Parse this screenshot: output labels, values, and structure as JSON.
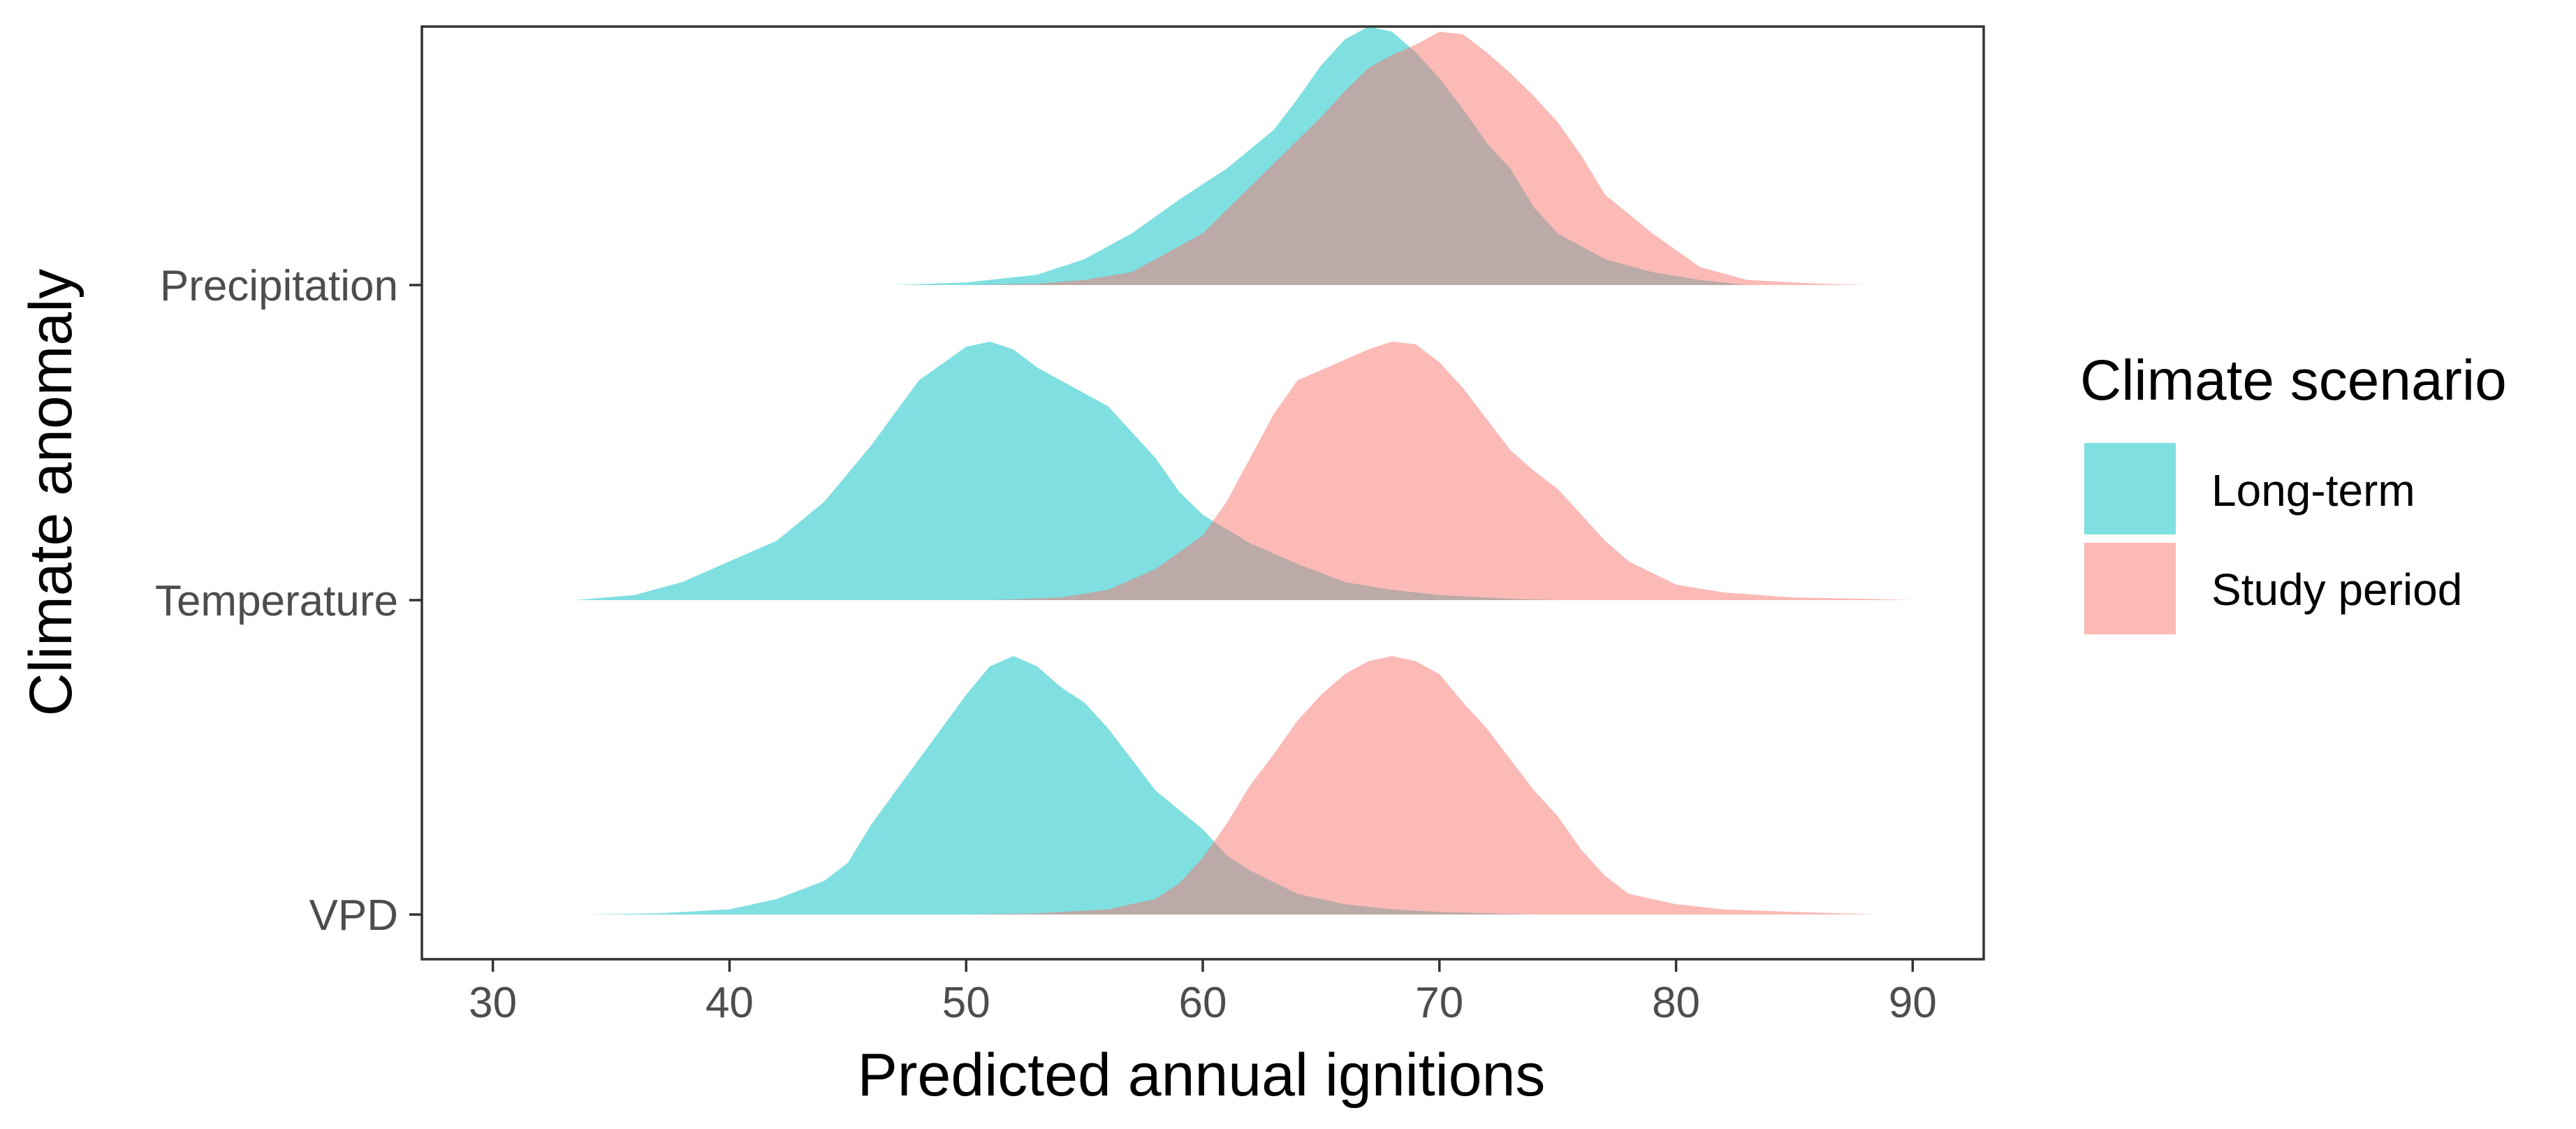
{
  "chart_data": {
    "type": "area",
    "subtype": "ridgeline-density",
    "title": "",
    "xlabel": "Predicted annual ignitions",
    "ylabel": "Climate anomaly",
    "xlim": [
      27,
      93
    ],
    "xticks": [
      30,
      40,
      50,
      60,
      70,
      80,
      90
    ],
    "categories": [
      "Precipitation",
      "Temperature",
      "VPD"
    ],
    "grid": false,
    "legend": {
      "title": "Climate scenario",
      "position": "right"
    },
    "series": [
      {
        "name": "Long-term",
        "color": "#00BFC4",
        "opacity": 0.5,
        "densities": {
          "Precipitation": [
            [
              47,
              0
            ],
            [
              50,
              0.01
            ],
            [
              53,
              0.04
            ],
            [
              55,
              0.1
            ],
            [
              57,
              0.2
            ],
            [
              59,
              0.33
            ],
            [
              61,
              0.45
            ],
            [
              63,
              0.6
            ],
            [
              64,
              0.72
            ],
            [
              65,
              0.85
            ],
            [
              66,
              0.95
            ],
            [
              67,
              1.0
            ],
            [
              68,
              0.98
            ],
            [
              69,
              0.9
            ],
            [
              70,
              0.8
            ],
            [
              71,
              0.68
            ],
            [
              72,
              0.55
            ],
            [
              73,
              0.45
            ],
            [
              74,
              0.3
            ],
            [
              75,
              0.2
            ],
            [
              77,
              0.1
            ],
            [
              79,
              0.05
            ],
            [
              81,
              0.02
            ],
            [
              83,
              0
            ]
          ],
          "Temperature": [
            [
              33.5,
              0
            ],
            [
              36,
              0.02
            ],
            [
              38,
              0.07
            ],
            [
              40,
              0.15
            ],
            [
              42,
              0.23
            ],
            [
              44,
              0.38
            ],
            [
              46,
              0.6
            ],
            [
              48,
              0.85
            ],
            [
              50,
              0.98
            ],
            [
              51,
              1.0
            ],
            [
              52,
              0.97
            ],
            [
              53,
              0.9
            ],
            [
              55,
              0.8
            ],
            [
              56,
              0.75
            ],
            [
              58,
              0.55
            ],
            [
              59,
              0.42
            ],
            [
              60,
              0.33
            ],
            [
              62,
              0.22
            ],
            [
              64,
              0.14
            ],
            [
              66,
              0.07
            ],
            [
              68,
              0.04
            ],
            [
              70,
              0.02
            ],
            [
              73,
              0.005
            ],
            [
              75,
              0
            ]
          ],
          "VPD": [
            [
              34,
              0
            ],
            [
              37,
              0.005
            ],
            [
              40,
              0.02
            ],
            [
              42,
              0.06
            ],
            [
              44,
              0.13
            ],
            [
              45,
              0.2
            ],
            [
              46,
              0.35
            ],
            [
              48,
              0.6
            ],
            [
              50,
              0.85
            ],
            [
              51,
              0.96
            ],
            [
              52,
              1.0
            ],
            [
              53,
              0.96
            ],
            [
              54,
              0.88
            ],
            [
              55,
              0.82
            ],
            [
              56,
              0.72
            ],
            [
              57,
              0.6
            ],
            [
              58,
              0.48
            ],
            [
              60,
              0.33
            ],
            [
              61,
              0.23
            ],
            [
              62,
              0.17
            ],
            [
              64,
              0.08
            ],
            [
              66,
              0.04
            ],
            [
              68,
              0.02
            ],
            [
              70,
              0.01
            ],
            [
              74,
              0
            ]
          ]
        }
      },
      {
        "name": "Study period",
        "color": "#F8766D",
        "opacity": 0.5,
        "densities": {
          "Precipitation": [
            [
              50,
              0
            ],
            [
              53,
              0.005
            ],
            [
              55,
              0.02
            ],
            [
              57,
              0.05
            ],
            [
              59,
              0.15
            ],
            [
              60,
              0.2
            ],
            [
              62,
              0.38
            ],
            [
              64,
              0.56
            ],
            [
              65,
              0.65
            ],
            [
              66,
              0.75
            ],
            [
              67,
              0.84
            ],
            [
              68,
              0.89
            ],
            [
              69,
              0.93
            ],
            [
              70,
              0.98
            ],
            [
              71,
              0.97
            ],
            [
              72,
              0.9
            ],
            [
              73,
              0.82
            ],
            [
              74,
              0.73
            ],
            [
              75,
              0.63
            ],
            [
              76,
              0.5
            ],
            [
              77,
              0.35
            ],
            [
              79,
              0.2
            ],
            [
              81,
              0.07
            ],
            [
              83,
              0.02
            ],
            [
              86,
              0.005
            ],
            [
              88,
              0
            ]
          ],
          "Temperature": [
            [
              51,
              0
            ],
            [
              54,
              0.01
            ],
            [
              56,
              0.04
            ],
            [
              58,
              0.12
            ],
            [
              60,
              0.25
            ],
            [
              61,
              0.38
            ],
            [
              62,
              0.55
            ],
            [
              63,
              0.72
            ],
            [
              64,
              0.85
            ],
            [
              66,
              0.93
            ],
            [
              67,
              0.97
            ],
            [
              68,
              1.0
            ],
            [
              69,
              0.99
            ],
            [
              70,
              0.92
            ],
            [
              71,
              0.82
            ],
            [
              72,
              0.7
            ],
            [
              73,
              0.58
            ],
            [
              74,
              0.5
            ],
            [
              75,
              0.43
            ],
            [
              76,
              0.33
            ],
            [
              77,
              0.23
            ],
            [
              78,
              0.15
            ],
            [
              80,
              0.06
            ],
            [
              82,
              0.03
            ],
            [
              85,
              0.01
            ],
            [
              88,
              0.005
            ],
            [
              90,
              0
            ]
          ],
          "VPD": [
            [
              50,
              0
            ],
            [
              53,
              0.005
            ],
            [
              56,
              0.02
            ],
            [
              58,
              0.06
            ],
            [
              59,
              0.12
            ],
            [
              60,
              0.22
            ],
            [
              61,
              0.35
            ],
            [
              62,
              0.5
            ],
            [
              63,
              0.62
            ],
            [
              64,
              0.75
            ],
            [
              65,
              0.85
            ],
            [
              66,
              0.93
            ],
            [
              67,
              0.98
            ],
            [
              68,
              1.0
            ],
            [
              69,
              0.98
            ],
            [
              70,
              0.93
            ],
            [
              71,
              0.82
            ],
            [
              72,
              0.72
            ],
            [
              73,
              0.6
            ],
            [
              74,
              0.48
            ],
            [
              75,
              0.38
            ],
            [
              76,
              0.25
            ],
            [
              77,
              0.15
            ],
            [
              78,
              0.08
            ],
            [
              80,
              0.04
            ],
            [
              82,
              0.02
            ],
            [
              85,
              0.01
            ],
            [
              88.5,
              0
            ]
          ]
        }
      }
    ]
  }
}
